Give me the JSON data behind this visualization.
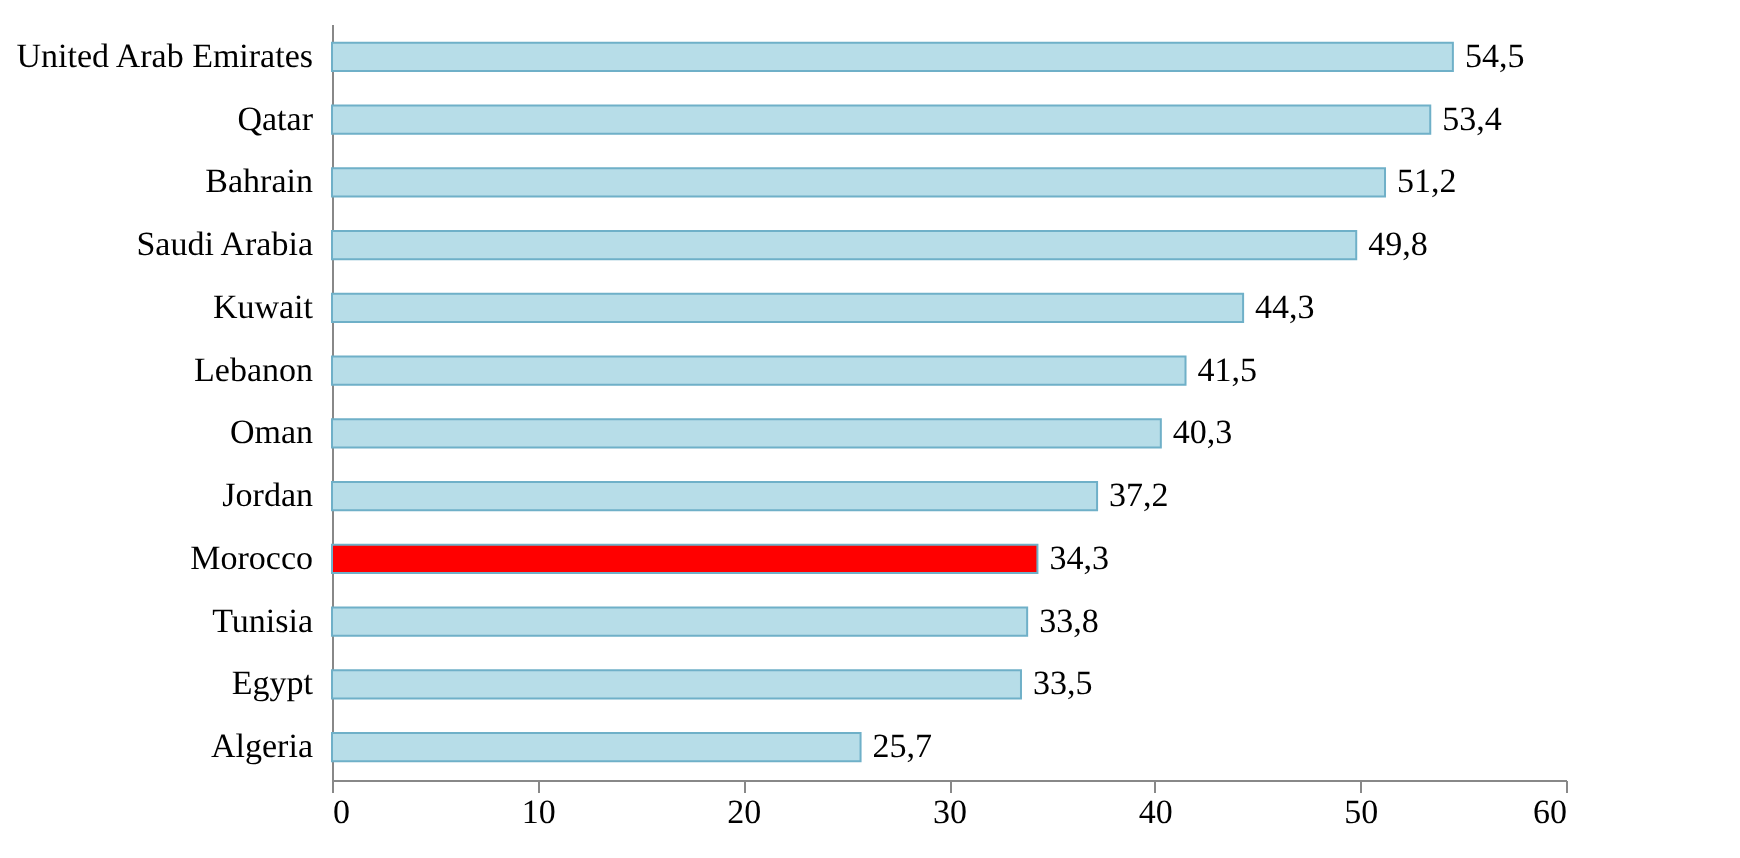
{
  "chart_data": {
    "type": "bar",
    "orientation": "horizontal",
    "categories": [
      "United Arab Emirates",
      "Qatar",
      "Bahrain",
      "Saudi Arabia",
      "Kuwait",
      "Lebanon",
      "Oman",
      "Jordan",
      "Morocco",
      "Tunisia",
      "Egypt",
      "Algeria"
    ],
    "values": [
      54.5,
      53.4,
      51.2,
      49.8,
      44.3,
      41.5,
      40.3,
      37.2,
      34.3,
      33.8,
      33.5,
      25.7
    ],
    "colors": [
      "#b7dde8",
      "#b7dde8",
      "#b7dde8",
      "#b7dde8",
      "#b7dde8",
      "#b7dde8",
      "#b7dde8",
      "#b7dde8",
      "#ff0000",
      "#b7dde8",
      "#b7dde8",
      "#b7dde8"
    ],
    "value_labels": [
      "54,5",
      "53,4",
      "51,2",
      "49,8",
      "44,3",
      "41,5",
      "40,3",
      "37,2",
      "34,3",
      "33,8",
      "33,5",
      "25,7"
    ],
    "xlim": [
      0,
      60
    ],
    "xticks": [
      0,
      10,
      20,
      30,
      40,
      50,
      60
    ],
    "grid": false
  }
}
